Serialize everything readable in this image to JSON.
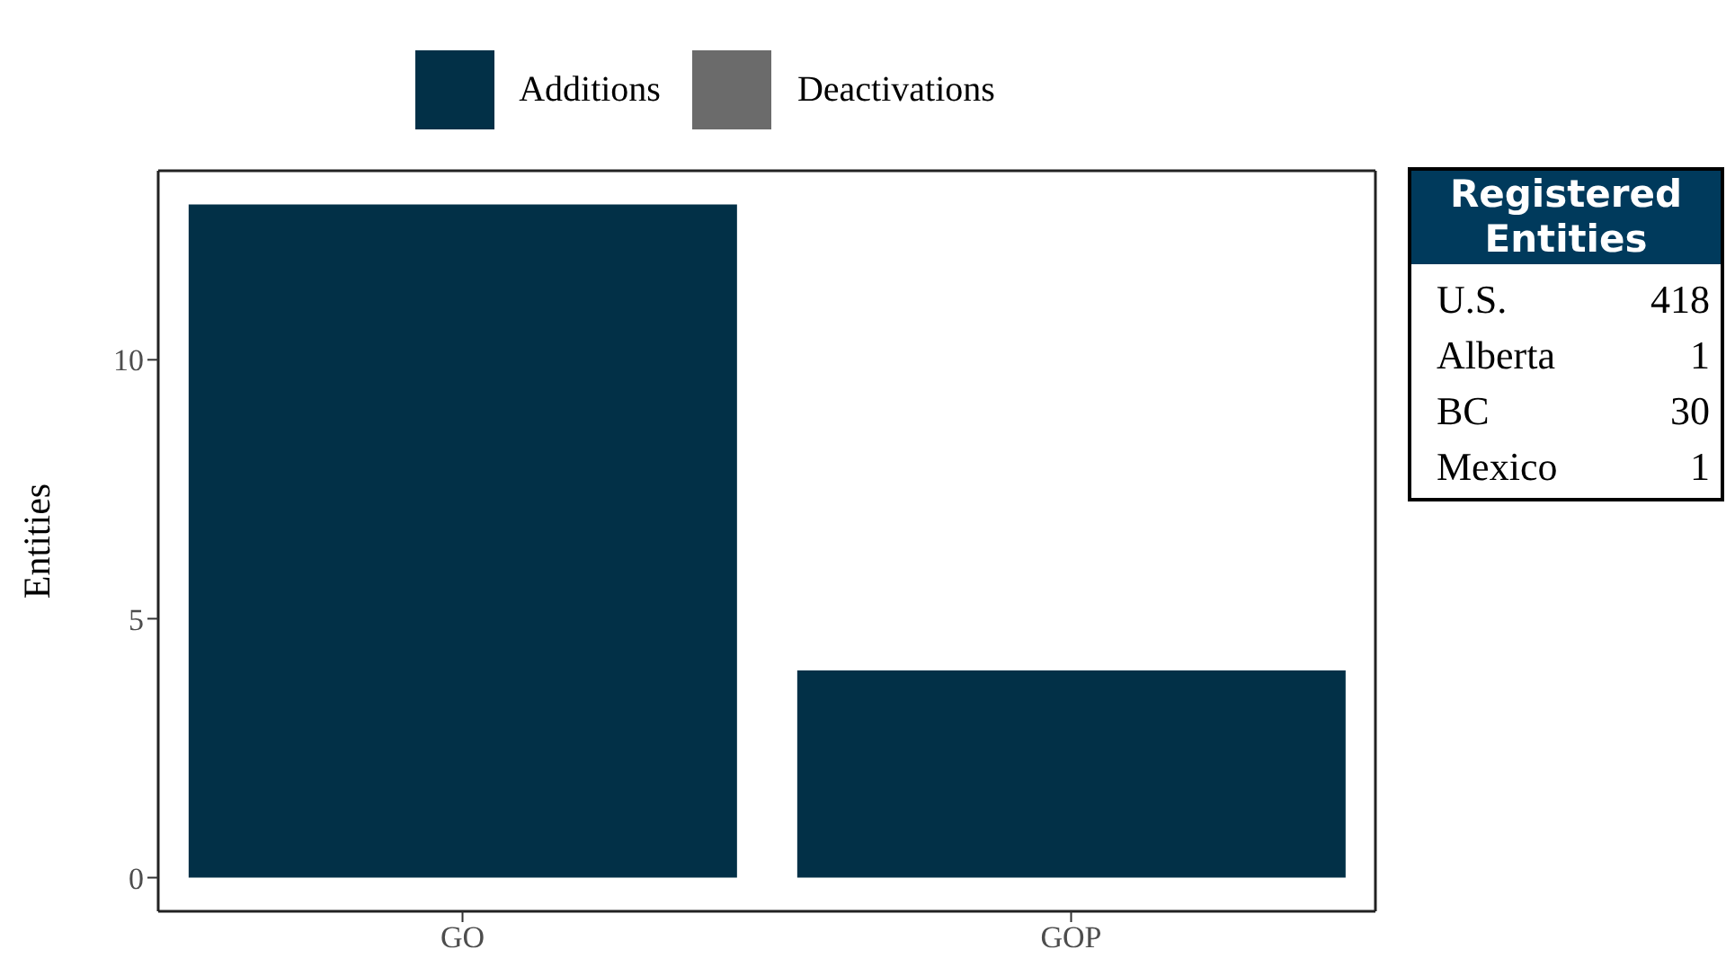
{
  "chart_data": [
    {
      "type": "bar",
      "categories": [
        "GO",
        "GOP"
      ],
      "series": [
        {
          "name": "Additions",
          "color": "#023047",
          "values": [
            13,
            4
          ]
        },
        {
          "name": "Deactivations",
          "color": "#6b6b6b",
          "values": [
            0,
            0
          ]
        }
      ],
      "stacked": true,
      "ylabel": "Entities",
      "ylim": [
        -0.65,
        13.65
      ],
      "yticks": [
        0,
        5,
        10
      ],
      "legend": "top"
    },
    {
      "type": "other",
      "title": "Registered Entities",
      "categories": [
        "U.S.",
        "Alberta",
        "BC",
        "Mexico"
      ],
      "values": [
        418,
        1,
        30,
        1
      ],
      "data_labels": true
    }
  ]
}
